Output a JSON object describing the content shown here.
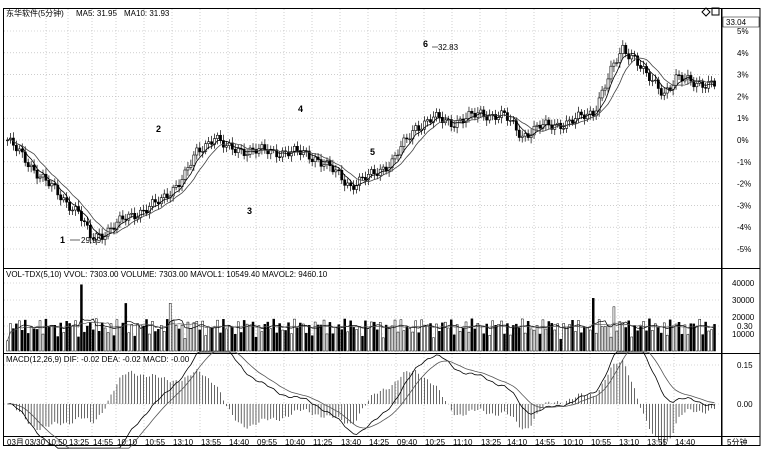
{
  "header": {
    "price_title": "东华软件(5分钟)",
    "ma5_label": "MA5: 31.95",
    "ma10_label": "MA10: 31.93",
    "current_price": "33.04"
  },
  "price_axis": [
    "5%",
    "4%",
    "3%",
    "2%",
    "1%",
    "0%",
    "-1%",
    "-2%",
    "-3%",
    "-4%",
    "-5%"
  ],
  "markers": {
    "low_price": "29.99",
    "high_price": "32.83",
    "numbers": [
      "1",
      "2",
      "3",
      "4",
      "5",
      "6"
    ]
  },
  "volume_panel": {
    "header": "VOL-TDX(5,10)  VVOL: 7303.00  VOLUME: 7303.00  MAVOL1: 10549.40  MAVOL2: 9460.10",
    "axis": [
      "40000",
      "30000",
      "20000",
      "10000"
    ]
  },
  "macd_panel": {
    "header": "MACD(12,26,9)  DIF: -0.02  DEA: -0.02  MACD: -0.00",
    "axis": [
      "0.30",
      "0.15",
      "0.00"
    ]
  },
  "time_axis": {
    "labels": [
      "03月",
      "03/30",
      "10:50",
      "13:25",
      "14:55",
      "10:10",
      "10:55",
      "13:10",
      "13:55",
      "14:40",
      "09:55",
      "10:40",
      "11:25",
      "13:40",
      "14:25",
      "09:40",
      "10:25",
      "11:10",
      "13:25",
      "14:10",
      "14:55",
      "10:10",
      "10:55",
      "13:10",
      "13:55",
      "14:40"
    ],
    "period_label": "5分钟"
  },
  "colors": {
    "candle": "#000000",
    "grid": "#b0b0b0",
    "ma": "#000000"
  }
}
